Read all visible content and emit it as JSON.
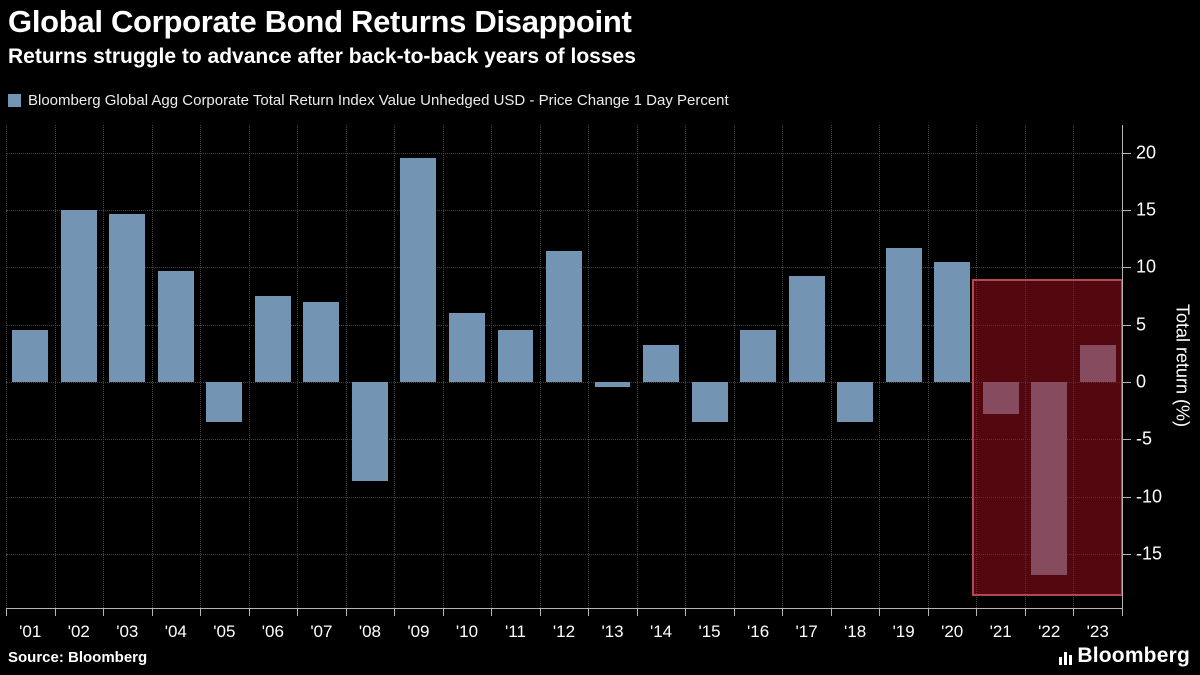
{
  "header": {
    "title": "Global Corporate Bond Returns Disappoint",
    "subtitle": "Returns struggle to advance after back-to-back years of losses"
  },
  "legend": {
    "label": "Bloomberg Global Agg Corporate Total Return Index Value Unhedged USD - Price Change 1 Day Percent",
    "swatch_color": "#7494b3"
  },
  "footer": {
    "source": "Source: Bloomberg",
    "logo": "Bloomberg"
  },
  "chart_data": {
    "type": "bar",
    "title": "Global Corporate Bond Returns Disappoint",
    "subtitle": "Returns struggle to advance after back-to-back years of losses",
    "series_name": "Bloomberg Global Agg Corporate Total Return Index Value Unhedged USD - Price Change 1 Day Percent",
    "categories": [
      "'01",
      "'02",
      "'03",
      "'04",
      "'05",
      "'06",
      "'07",
      "'08",
      "'09",
      "'10",
      "'11",
      "'12",
      "'13",
      "'14",
      "'15",
      "'16",
      "'17",
      "'18",
      "'19",
      "'20",
      "'21",
      "'22",
      "'23"
    ],
    "values": [
      4.5,
      15.0,
      14.6,
      9.7,
      -3.5,
      7.5,
      7.0,
      -8.6,
      19.5,
      6.0,
      4.5,
      11.4,
      -0.4,
      3.2,
      -3.5,
      4.5,
      9.2,
      -3.5,
      11.7,
      10.5,
      -2.8,
      -16.8,
      3.2
    ],
    "xlabel": "",
    "ylabel": "Total return (%)",
    "yticks": [
      20,
      15,
      10,
      5,
      0,
      -5,
      -10,
      -15
    ],
    "ylim": [
      -19.7,
      22.4
    ],
    "grid": "dotted, horizontal and vertical",
    "legend_position": "top-left",
    "bar_color": "#7494b3",
    "background_color": "#000000",
    "highlight": {
      "covers_categories": [
        "'21",
        "'22",
        "'23"
      ],
      "starts_after_category": "'20",
      "y_top": 9.0,
      "y_bottom": -18.3,
      "fill": "rgba(150,15,25,0.55)",
      "border_color": "#b5484e"
    }
  }
}
